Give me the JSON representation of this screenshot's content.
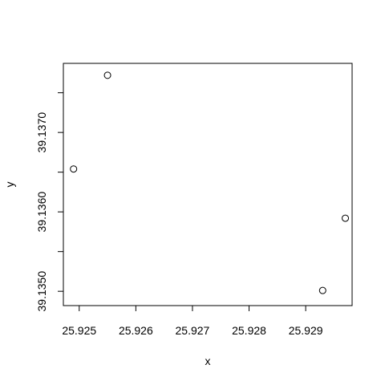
{
  "chart_data": {
    "type": "scatter",
    "title": "",
    "xlabel": "x",
    "ylabel": "y",
    "xlim": [
      25.92472,
      25.92982
    ],
    "ylim": [
      39.13482,
      39.13787
    ],
    "grid": false,
    "x_ticks": [
      25.925,
      25.926,
      25.927,
      25.928,
      25.929
    ],
    "x_tick_labels": [
      "25.925",
      "25.926",
      "25.927",
      "25.928",
      "25.929"
    ],
    "y_ticks": [
      39.135,
      39.1355,
      39.136,
      39.1365,
      39.137,
      39.1375
    ],
    "y_tick_labels": [
      "39.1350",
      "",
      "39.1360",
      "",
      "39.1370",
      ""
    ],
    "series": [
      {
        "points": [
          {
            "x": 25.9249,
            "y": 39.13654
          },
          {
            "x": 25.9255,
            "y": 39.13772
          },
          {
            "x": 25.9293,
            "y": 39.13501
          },
          {
            "x": 25.9297,
            "y": 39.13592
          }
        ]
      }
    ]
  }
}
